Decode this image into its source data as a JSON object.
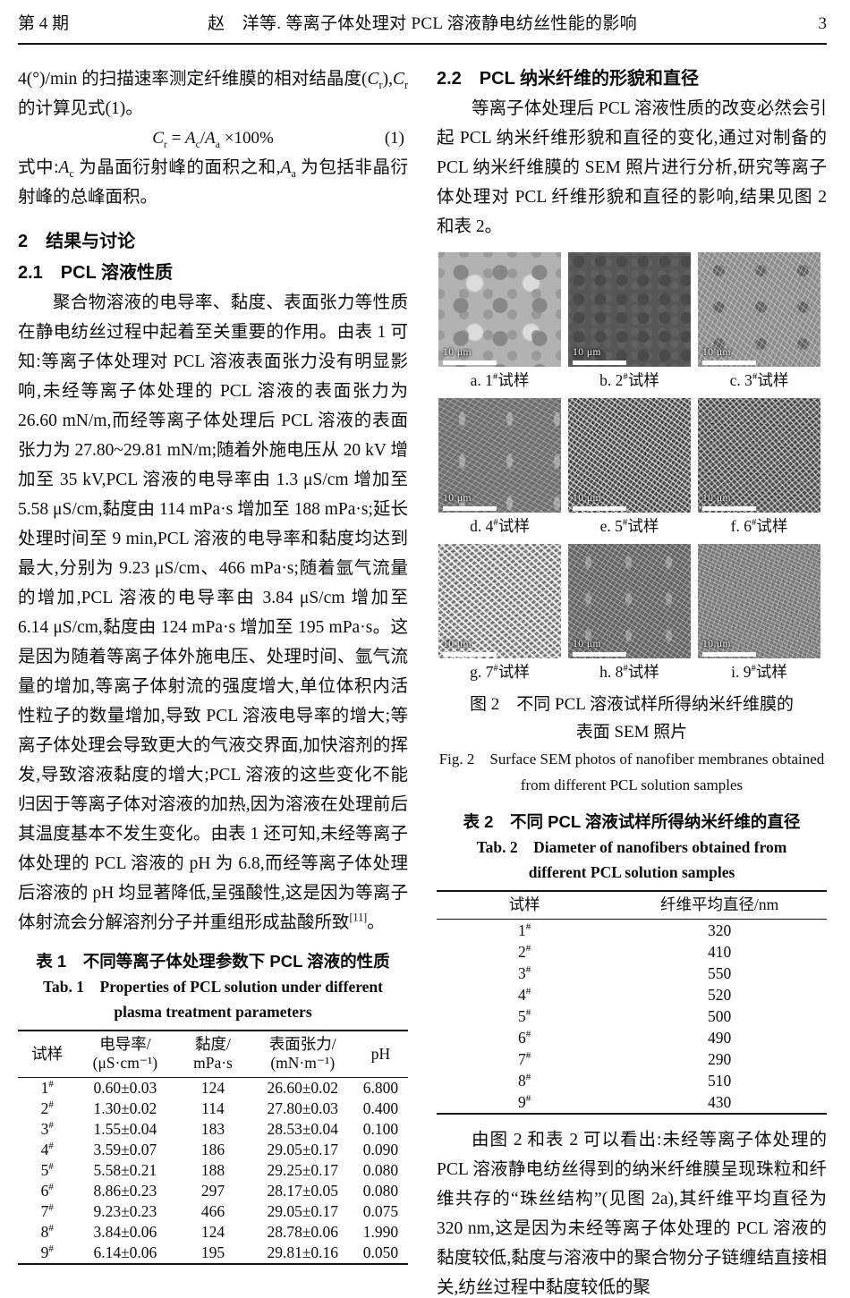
{
  "header": {
    "issue": "第 4 期",
    "title": "赵　洋等. 等离子体处理对 PCL 溶液静电纺丝性能的影响",
    "page_number": "3"
  },
  "left": {
    "p_crystallinity": [
      {
        "t": "4(°)/min 的扫描速率测定纤维膜的相对结晶度("
      },
      {
        "t": "C",
        "s": "i"
      },
      {
        "t": "r",
        "s": "sub"
      },
      {
        "t": "),"
      },
      {
        "t": "C",
        "s": "i"
      },
      {
        "t": "r",
        "s": "sub"
      },
      {
        "t": " 的计算见式(1)。"
      }
    ],
    "formula": {
      "expression": [
        {
          "t": "C",
          "s": "i"
        },
        {
          "t": "r",
          "s": "sub"
        },
        {
          "t": " = "
        },
        {
          "t": "A",
          "s": "i"
        },
        {
          "t": "c",
          "s": "sub"
        },
        {
          "t": "/"
        },
        {
          "t": "A",
          "s": "i"
        },
        {
          "t": "a",
          "s": "sub"
        },
        {
          "t": " ×100%"
        }
      ],
      "number": "(1)"
    },
    "p_where": [
      {
        "t": "式中:"
      },
      {
        "t": "A",
        "s": "i"
      },
      {
        "t": "c",
        "s": "sub"
      },
      {
        "t": " 为晶面衍射峰的面积之和,"
      },
      {
        "t": "A",
        "s": "i"
      },
      {
        "t": "a",
        "s": "sub"
      },
      {
        "t": " 为包括非晶衍射峰的总峰面积。"
      }
    ],
    "h_results": "2　结果与讨论",
    "h_solution": "2.1　PCL 溶液性质",
    "p_properties": [
      {
        "t": "聚合物溶液的电导率、黏度、表面张力等性质在静电纺丝过程中起着至关重要的作用。由表 1 可知:等离子体处理对 PCL 溶液表面张力没有明显影响,未经等离子体处理的 PCL 溶液的表面张力为 26.60 mN/m,而经等离子体处理后 PCL 溶液的表面张力为 27.80~29.81 mN/m;随着外施电压从 20 kV 增加至 35 kV,PCL 溶液的电导率由 1.3 μS/cm 增加至 5.58 μS/cm,黏度由 114 mPa·s 增加至 188 mPa·s;延长处理时间至 9 min,PCL 溶液的电导率和黏度均达到最大,分别为 9.23 μS/cm、466 mPa·s;随着氩气流量的增加,PCL 溶液的电导率由 3.84 μS/cm 增加至 6.14 μS/cm,黏度由 124 mPa·s 增加至 195 mPa·s。这是因为随着等离子体外施电压、处理时间、氩气流量的增加,等离子体射流的强度增大,单位体积内活性粒子的数量增加,导致 PCL 溶液电导率的增大;等离子体处理会导致更大的气液交界面,加快溶剂的挥发,导致溶液黏度的增大;PCL 溶液的这些变化不能归因于等离子体对溶液的加热,因为溶液在处理前后其温度基本不发生变化。由表 1 还可知,未经等离子体处理的 PCL 溶液的 pH 为 6.8,而经等离子体处理后溶液的 pH 均显著降低,呈强酸性,这是因为等离子体射流会分解溶剂分子并重组形成盐酸所致"
      },
      {
        "t": "[11]",
        "s": "sup"
      },
      {
        "t": "。"
      }
    ]
  },
  "table1": {
    "caption_zh": "表 1　不同等离子体处理参数下 PCL 溶液的性质",
    "caption_en1": "Tab. 1　Properties of PCL solution under different",
    "caption_en2": "plasma treatment parameters",
    "headers": [
      {
        "line1": "试样"
      },
      {
        "line1": "电导率/",
        "line2": "(μS·cm⁻¹)"
      },
      {
        "line1": "黏度/",
        "line2": "mPa·s"
      },
      {
        "line1": "表面张力/",
        "line2": "(mN·m⁻¹)"
      },
      {
        "line1": "pH"
      }
    ],
    "rows": [
      {
        "sample": [
          {
            "t": "1"
          },
          {
            "t": "#",
            "s": "sup"
          }
        ],
        "conductivity": "0.60±0.03",
        "viscosity": "124",
        "surface_tension": "26.60±0.02",
        "ph": "6.800"
      },
      {
        "sample": [
          {
            "t": "2"
          },
          {
            "t": "#",
            "s": "sup"
          }
        ],
        "conductivity": "1.30±0.02",
        "viscosity": "114",
        "surface_tension": "27.80±0.03",
        "ph": "0.400"
      },
      {
        "sample": [
          {
            "t": "3"
          },
          {
            "t": "#",
            "s": "sup"
          }
        ],
        "conductivity": "1.55±0.04",
        "viscosity": "183",
        "surface_tension": "28.53±0.04",
        "ph": "0.100"
      },
      {
        "sample": [
          {
            "t": "4"
          },
          {
            "t": "#",
            "s": "sup"
          }
        ],
        "conductivity": "3.59±0.07",
        "viscosity": "186",
        "surface_tension": "29.05±0.17",
        "ph": "0.090"
      },
      {
        "sample": [
          {
            "t": "5"
          },
          {
            "t": "#",
            "s": "sup"
          }
        ],
        "conductivity": "5.58±0.21",
        "viscosity": "188",
        "surface_tension": "29.25±0.17",
        "ph": "0.080"
      },
      {
        "sample": [
          {
            "t": "6"
          },
          {
            "t": "#",
            "s": "sup"
          }
        ],
        "conductivity": "8.86±0.23",
        "viscosity": "297",
        "surface_tension": "28.17±0.05",
        "ph": "0.080"
      },
      {
        "sample": [
          {
            "t": "7"
          },
          {
            "t": "#",
            "s": "sup"
          }
        ],
        "conductivity": "9.23±0.23",
        "viscosity": "466",
        "surface_tension": "29.05±0.17",
        "ph": "0.075"
      },
      {
        "sample": [
          {
            "t": "8"
          },
          {
            "t": "#",
            "s": "sup"
          }
        ],
        "conductivity": "3.84±0.06",
        "viscosity": "124",
        "surface_tension": "28.78±0.06",
        "ph": "1.990"
      },
      {
        "sample": [
          {
            "t": "9"
          },
          {
            "t": "#",
            "s": "sup"
          }
        ],
        "conductivity": "6.14±0.06",
        "viscosity": "195",
        "surface_tension": "29.81±0.16",
        "ph": "0.050"
      }
    ]
  },
  "right": {
    "h_morphology": "2.2　PCL 纳米纤维的形貌和直径",
    "p_intro": "等离子体处理后 PCL 溶液性质的改变必然会引起 PCL 纳米纤维形貌和直径的变化,通过对制备的 PCL 纳米纤维膜的 SEM 照片进行分析,研究等离子体处理对 PCL 纤维形貌和直径的影响,结果见图 2 和表 2。",
    "p_discussion": "由图 2 和表 2 可以看出:未经等离子体处理的 PCL 溶液静电纺丝得到的纳米纤维膜呈现珠粒和纤维共存的“珠丝结构”(见图 2a),其纤维平均直径为 320 nm,这是因为未经等离子体处理的 PCL 溶液的黏度较低,黏度与溶液中的聚合物分子链缠结直接相关,纺丝过程中黏度较低的聚"
  },
  "figure2": {
    "scale_label": "10 μm",
    "tiles": [
      {
        "caption": [
          {
            "t": "a. 1"
          },
          {
            "t": "#",
            "s": "sup"
          },
          {
            "t": "试样"
          }
        ]
      },
      {
        "caption": [
          {
            "t": "b. 2"
          },
          {
            "t": "#",
            "s": "sup"
          },
          {
            "t": "试样"
          }
        ]
      },
      {
        "caption": [
          {
            "t": "c. 3"
          },
          {
            "t": "#",
            "s": "sup"
          },
          {
            "t": "试样"
          }
        ]
      },
      {
        "caption": [
          {
            "t": "d. 4"
          },
          {
            "t": "#",
            "s": "sup"
          },
          {
            "t": "试样"
          }
        ]
      },
      {
        "caption": [
          {
            "t": "e. 5"
          },
          {
            "t": "#",
            "s": "sup"
          },
          {
            "t": "试样"
          }
        ]
      },
      {
        "caption": [
          {
            "t": "f. 6"
          },
          {
            "t": "#",
            "s": "sup"
          },
          {
            "t": "试样"
          }
        ]
      },
      {
        "caption": [
          {
            "t": "g. 7"
          },
          {
            "t": "#",
            "s": "sup"
          },
          {
            "t": "试样"
          }
        ]
      },
      {
        "caption": [
          {
            "t": "h. 8"
          },
          {
            "t": "#",
            "s": "sup"
          },
          {
            "t": "试样"
          }
        ]
      },
      {
        "caption": [
          {
            "t": "i. 9"
          },
          {
            "t": "#",
            "s": "sup"
          },
          {
            "t": "试样"
          }
        ]
      }
    ],
    "caption_zh1": "图 2　不同 PCL 溶液试样所得纳米纤维膜的",
    "caption_zh2": "表面 SEM 照片",
    "caption_en1": "Fig. 2　Surface SEM photos of nanofiber membranes obtained",
    "caption_en2": "from different PCL solution samples"
  },
  "table2": {
    "caption_zh": "表 2　不同 PCL 溶液试样所得纳米纤维的直径",
    "caption_en1": "Tab. 2　Diameter of nanofibers obtained from",
    "caption_en2": "different PCL solution samples",
    "headers": [
      "试样",
      "纤维平均直径/nm"
    ],
    "rows": [
      {
        "sample": [
          {
            "t": "1"
          },
          {
            "t": "#",
            "s": "sup"
          }
        ],
        "diameter": "320"
      },
      {
        "sample": [
          {
            "t": "2"
          },
          {
            "t": "#",
            "s": "sup"
          }
        ],
        "diameter": "410"
      },
      {
        "sample": [
          {
            "t": "3"
          },
          {
            "t": "#",
            "s": "sup"
          }
        ],
        "diameter": "550"
      },
      {
        "sample": [
          {
            "t": "4"
          },
          {
            "t": "#",
            "s": "sup"
          }
        ],
        "diameter": "520"
      },
      {
        "sample": [
          {
            "t": "5"
          },
          {
            "t": "#",
            "s": "sup"
          }
        ],
        "diameter": "500"
      },
      {
        "sample": [
          {
            "t": "6"
          },
          {
            "t": "#",
            "s": "sup"
          }
        ],
        "diameter": "490"
      },
      {
        "sample": [
          {
            "t": "7"
          },
          {
            "t": "#",
            "s": "sup"
          }
        ],
        "diameter": "290"
      },
      {
        "sample": [
          {
            "t": "8"
          },
          {
            "t": "#",
            "s": "sup"
          }
        ],
        "diameter": "510"
      },
      {
        "sample": [
          {
            "t": "9"
          },
          {
            "t": "#",
            "s": "sup"
          }
        ],
        "diameter": "430"
      }
    ]
  }
}
